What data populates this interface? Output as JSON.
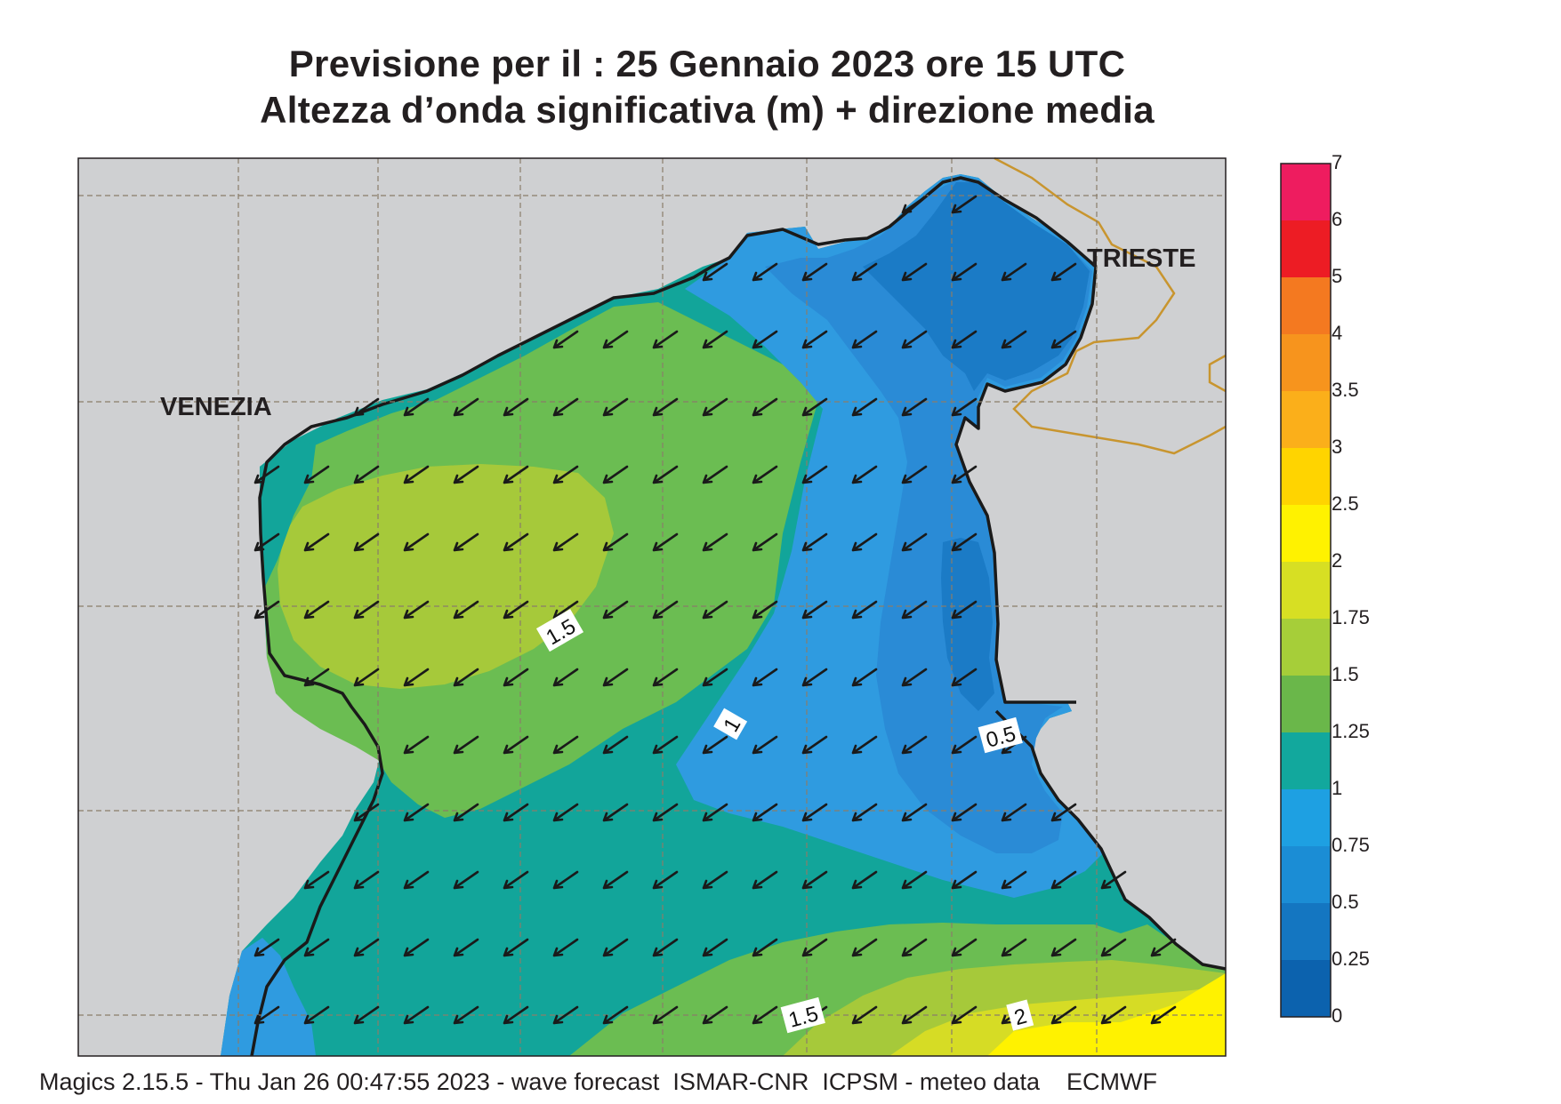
{
  "title": {
    "line1": "Previsione per il  :  25  Gennaio  2023   ore 15 UTC",
    "line2": "Altezza d’onda significativa (m) + direzione media"
  },
  "map": {
    "cities": [
      "VENEZIA",
      "TRIESTE"
    ],
    "contour_labels": [
      "1.5",
      "1",
      "0.5",
      "1.5",
      "2"
    ],
    "sea_color_scale": {
      "land": "#cfd0d2",
      "c_0_25": "#0a6bb8",
      "c_0_25_0_5": "#1b7bc6",
      "c_0_5_0_75": "#2a8bd6",
      "c_0_75_1": "#2f9be0",
      "c_1_1_25": "#12a59a",
      "c_1_25_1_5": "#6bbd52",
      "c_1_5_1_75": "#a6c93a",
      "c_1_75_2": "#d6dc25",
      "c_2_2_5": "#fff200"
    },
    "arrow_direction": "south-west"
  },
  "legend": {
    "ticks": [
      "7",
      "6",
      "5",
      "4",
      "3.5",
      "3",
      "2.5",
      "2",
      "1.75",
      "1.5",
      "1.25",
      "1",
      "0.75",
      "0.5",
      "0.25",
      "0"
    ],
    "colors": [
      "#ee1c5f",
      "#ed1c24",
      "#f47920",
      "#f7941d",
      "#fbaf1a",
      "#ffd400",
      "#fff200",
      "#d7df23",
      "#a6ce39",
      "#6ab74a",
      "#12a89d",
      "#1ea0e2",
      "#1b8dd5",
      "#1476c1",
      "#0c62ae"
    ]
  },
  "footer": "Magics 2.15.5 - Thu Jan 26 00:47:55 2023 - wave forecast  ISMAR-CNR  ICPSM - meteo data    ECMWF"
}
